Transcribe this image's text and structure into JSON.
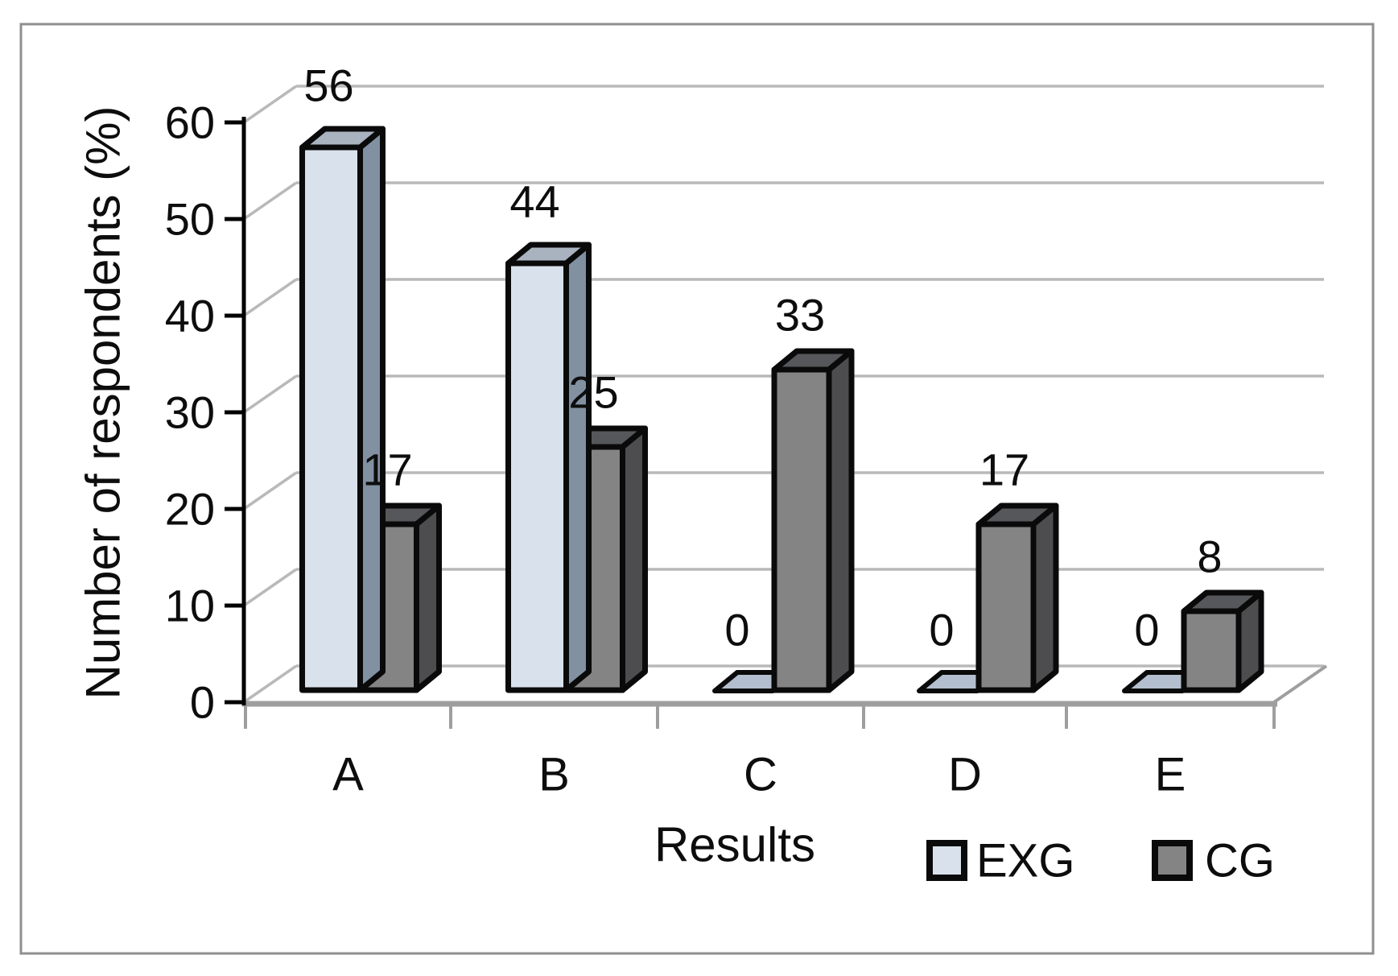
{
  "chart_data": {
    "type": "bar",
    "projection": "3d-column",
    "title": "",
    "xlabel": "Results",
    "ylabel": "Number of respondents (%)",
    "categories": [
      "A",
      "B",
      "C",
      "D",
      "E"
    ],
    "series": [
      {
        "name": "EXG",
        "values": [
          56,
          44,
          0,
          0,
          0
        ]
      },
      {
        "name": "CG",
        "values": [
          17,
          25,
          33,
          17,
          8
        ]
      }
    ],
    "data_labels": {
      "EXG": [
        "56",
        "44",
        "0",
        "0",
        "0"
      ],
      "CG": [
        "17",
        "25",
        "33",
        "17",
        "8"
      ]
    },
    "ylim": [
      0,
      60
    ],
    "yticks": [
      "0",
      "10",
      "20",
      "30",
      "40",
      "50",
      "60"
    ],
    "grid": true,
    "legend_position": "bottom-right",
    "colors": {
      "exg_front": "#d9e2ec",
      "exg_top": "#a9b3c0",
      "exg_side": "#8191a2",
      "exg_zero_tile": "#b3bfce",
      "cg_front": "#848484",
      "cg_top": "#56575a",
      "cg_side": "#4d4d4f",
      "outline": "#0a0a0a",
      "gridline": "#b9b9b9",
      "floor_line": "#9e9e9e",
      "axis": "#000000",
      "frame_border": "#8f8f8f"
    }
  },
  "legend": {
    "items": [
      {
        "label": "EXG",
        "color_key": "exg_front"
      },
      {
        "label": "CG",
        "color_key": "cg_front"
      }
    ]
  }
}
